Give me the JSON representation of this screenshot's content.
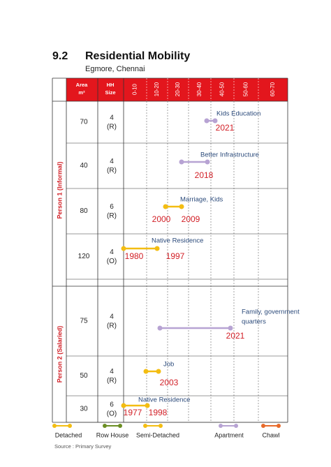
{
  "section": {
    "number": "9.2",
    "title": "Residential Mobility",
    "subtitle": "Egmore, Chennai"
  },
  "table": {
    "headers": {
      "area": [
        "Area",
        "m²"
      ],
      "hh_size": [
        "HH",
        "Size"
      ],
      "ages": [
        "0-10",
        "10-20",
        "20-30",
        "30-40",
        "40-50",
        "50-60",
        "60-70"
      ]
    },
    "groups": [
      {
        "label": "Person 1 (Informal)",
        "rows": [
          {
            "area": 70,
            "hh_size": [
              "4",
              "(R)"
            ],
            "event": [
              "Kids Education"
            ],
            "years": [
              "2021"
            ]
          },
          {
            "area": 40,
            "hh_size": [
              "4",
              "(R)"
            ],
            "event": [
              "Better Infrastructure"
            ],
            "years": [
              "2018"
            ]
          },
          {
            "area": 80,
            "hh_size": [
              "6",
              "(R)"
            ],
            "event": [
              "Marriage, Kids"
            ],
            "years": [
              "2000",
              "2009"
            ]
          },
          {
            "area": 120,
            "hh_size": [
              "4",
              "(O)"
            ],
            "event": [
              "Native Residence"
            ],
            "years": [
              "1980",
              "1997"
            ]
          }
        ]
      },
      {
        "label": "Person 2 (Salaried)",
        "rows": [
          {
            "area": 75,
            "hh_size": [
              "4",
              "(R)"
            ],
            "event": [
              "Family, government",
              "quarters"
            ],
            "years": [
              "2021"
            ]
          },
          {
            "area": 50,
            "hh_size": [
              "4",
              "(R)"
            ],
            "event": [
              "Job"
            ],
            "years": [
              "2003"
            ]
          },
          {
            "area": 30,
            "hh_size": [
              "6",
              "(O)"
            ],
            "event": [
              "Native Residence"
            ],
            "years": [
              "1977",
              "1998"
            ]
          }
        ]
      }
    ]
  },
  "legend": [
    "Detached",
    "Row House",
    "Semi-Detached",
    "Apartment",
    "Chawl"
  ],
  "source": "Source : Primary Survey"
}
